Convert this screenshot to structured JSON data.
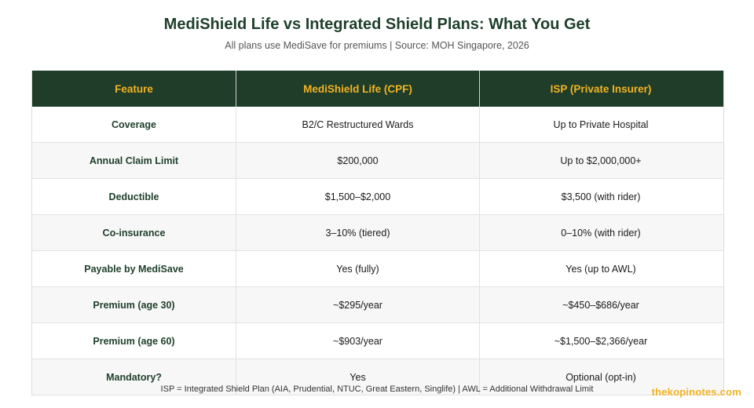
{
  "title": "MediShield Life vs Integrated Shield Plans: What You Get",
  "subtitle": "All plans use MediSave for premiums | Source: MOH Singapore, 2026",
  "table": {
    "headers": [
      "Feature",
      "MediShield Life (CPF)",
      "ISP (Private Insurer)"
    ],
    "rows": [
      [
        "Coverage",
        "B2/C Restructured Wards",
        "Up to Private Hospital"
      ],
      [
        "Annual Claim Limit",
        "$200,000",
        "Up to $2,000,000+"
      ],
      [
        "Deductible",
        "$1,500–$2,000",
        "$3,500 (with rider)"
      ],
      [
        "Co-insurance",
        "3–10% (tiered)",
        "0–10% (with rider)"
      ],
      [
        "Payable by MediSave",
        "Yes (fully)",
        "Yes (up to AWL)"
      ],
      [
        "Premium (age 30)",
        "~$295/year",
        "~$450–$686/year"
      ],
      [
        "Premium (age 60)",
        "~$903/year",
        "~$1,500–$2,366/year"
      ],
      [
        "Mandatory?",
        "Yes",
        "Optional (opt-in)"
      ]
    ]
  },
  "footnote": "ISP = Integrated Shield Plan (AIA, Prudential, NTUC, Great Eastern, Singlife) | AWL = Additional Withdrawal Limit",
  "brand": "thekopinotes.com",
  "colors": {
    "header_bg": "#1f3d28",
    "header_text": "#f2b323",
    "title_text": "#1e3f2a",
    "brand": "#f2b323"
  }
}
